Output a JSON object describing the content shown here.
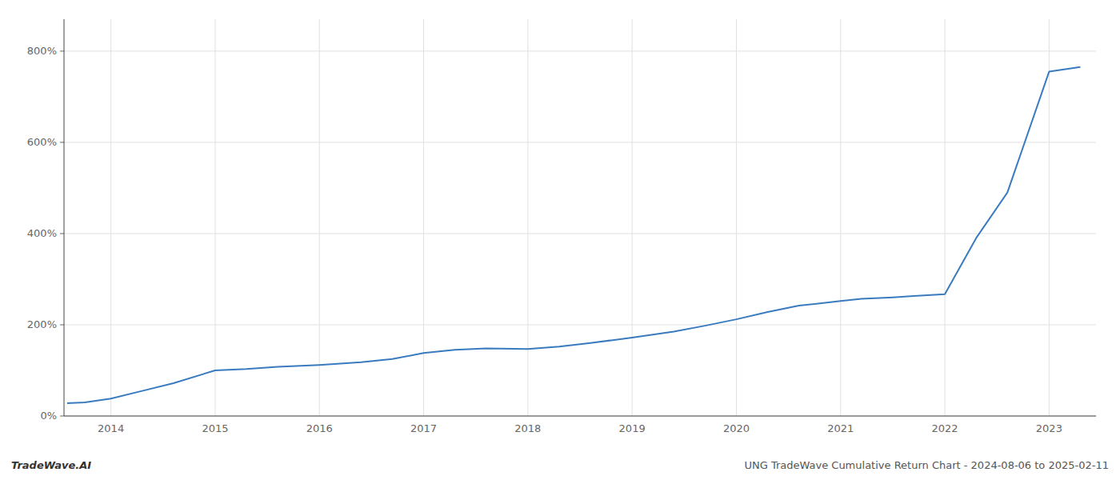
{
  "chart_data": {
    "type": "line",
    "title": "UNG TradeWave Cumulative Return Chart - 2024-08-06 to 2025-02-11",
    "annotations": [
      "TradeWave.AI"
    ],
    "x": [
      2013.58,
      2013.75,
      2014.0,
      2014.3,
      2014.6,
      2015.0,
      2015.3,
      2015.6,
      2016.0,
      2016.4,
      2016.7,
      2017.0,
      2017.3,
      2017.6,
      2018.0,
      2018.3,
      2018.6,
      2019.0,
      2019.4,
      2019.7,
      2020.0,
      2020.3,
      2020.6,
      2021.0,
      2021.2,
      2021.5,
      2021.7,
      2022.0,
      2022.3,
      2022.6,
      2023.0,
      2023.3
    ],
    "values": [
      28,
      30,
      38,
      55,
      72,
      100,
      103,
      108,
      112,
      118,
      125,
      138,
      145,
      148,
      147,
      152,
      160,
      172,
      185,
      198,
      212,
      228,
      242,
      252,
      257,
      260,
      263,
      267,
      390,
      490,
      755,
      765
    ],
    "color": "#3a7bbf",
    "xlim": [
      2013.55,
      2023.45
    ],
    "xticks": [
      2014,
      2015,
      2016,
      2017,
      2018,
      2019,
      2020,
      2021,
      2022,
      2023
    ],
    "ylim": [
      0,
      870
    ],
    "yticks": [
      {
        "value": 0,
        "label": "0%"
      },
      {
        "value": 200,
        "label": "200%"
      },
      {
        "value": 400,
        "label": "400%"
      },
      {
        "value": 600,
        "label": "600%"
      },
      {
        "value": 800,
        "label": "800%"
      }
    ],
    "grid": true
  }
}
